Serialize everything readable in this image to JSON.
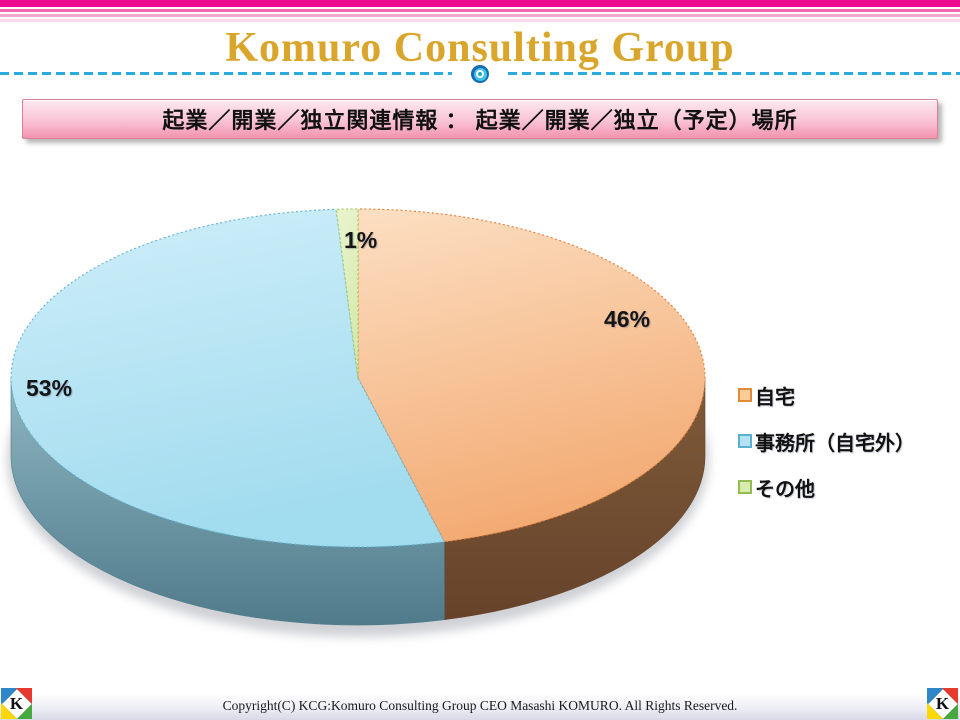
{
  "header": {
    "brand": "Komuro Consulting Group",
    "colors": {
      "stripe_pink": "#EC0A8E",
      "brand_gold": "#D9A62B",
      "divider_cyan": "#2BAADE",
      "heading_bar_pink": "#F293AF"
    }
  },
  "heading_bar": {
    "text": "起業／開業／独立関連情報 ： 起業／開業／独立（予定）場所"
  },
  "chart_data": {
    "type": "pie",
    "is_3d": true,
    "title": "",
    "unit": "percent",
    "start_angle": "12-oclock",
    "direction": "clockwise",
    "legend_position": "right",
    "grid": false,
    "categories": [
      "自宅",
      "事務所（自宅外）",
      "その他"
    ],
    "values": [
      46,
      53,
      1
    ],
    "series": [
      {
        "name": "自宅",
        "value": 46,
        "label": "46%",
        "top_light": "#FCDFC2",
        "top_dark": "#F3AB74",
        "side_light": "#7F5B3A",
        "side_dark": "#66432A",
        "edge": "#E8823E",
        "legend_fill": "#F9CC98",
        "legend_border": "#E08A3C"
      },
      {
        "name": "事務所（自宅外）",
        "value": 53,
        "label": "53%",
        "top_light": "#CFEEF9",
        "top_dark": "#A2DCEF",
        "side_light": "#8FB6C1",
        "side_dark": "#507B8B",
        "edge": "#66B6D2",
        "legend_fill": "#B4E2F2",
        "legend_border": "#5BB0D0"
      },
      {
        "name": "その他",
        "value": 1,
        "label": "1%",
        "top_light": "#EAF4CF",
        "top_dark": "#D5E9AA",
        "side_light": "#9DB86B",
        "side_dark": "#7E9A50",
        "edge": "#A4C966",
        "legend_fill": "#D9EBAE",
        "legend_border": "#93BC55"
      }
    ]
  },
  "footer": {
    "copyright": "Copyright(C)  KCG:Komuro Consulting Group  CEO Masashi KOMURO. All Rights Reserved.",
    "logo": {
      "letter": "K",
      "blue": "#2F86C9",
      "red": "#E8392E",
      "yellow": "#FFD800",
      "green": "#47A83E"
    }
  }
}
